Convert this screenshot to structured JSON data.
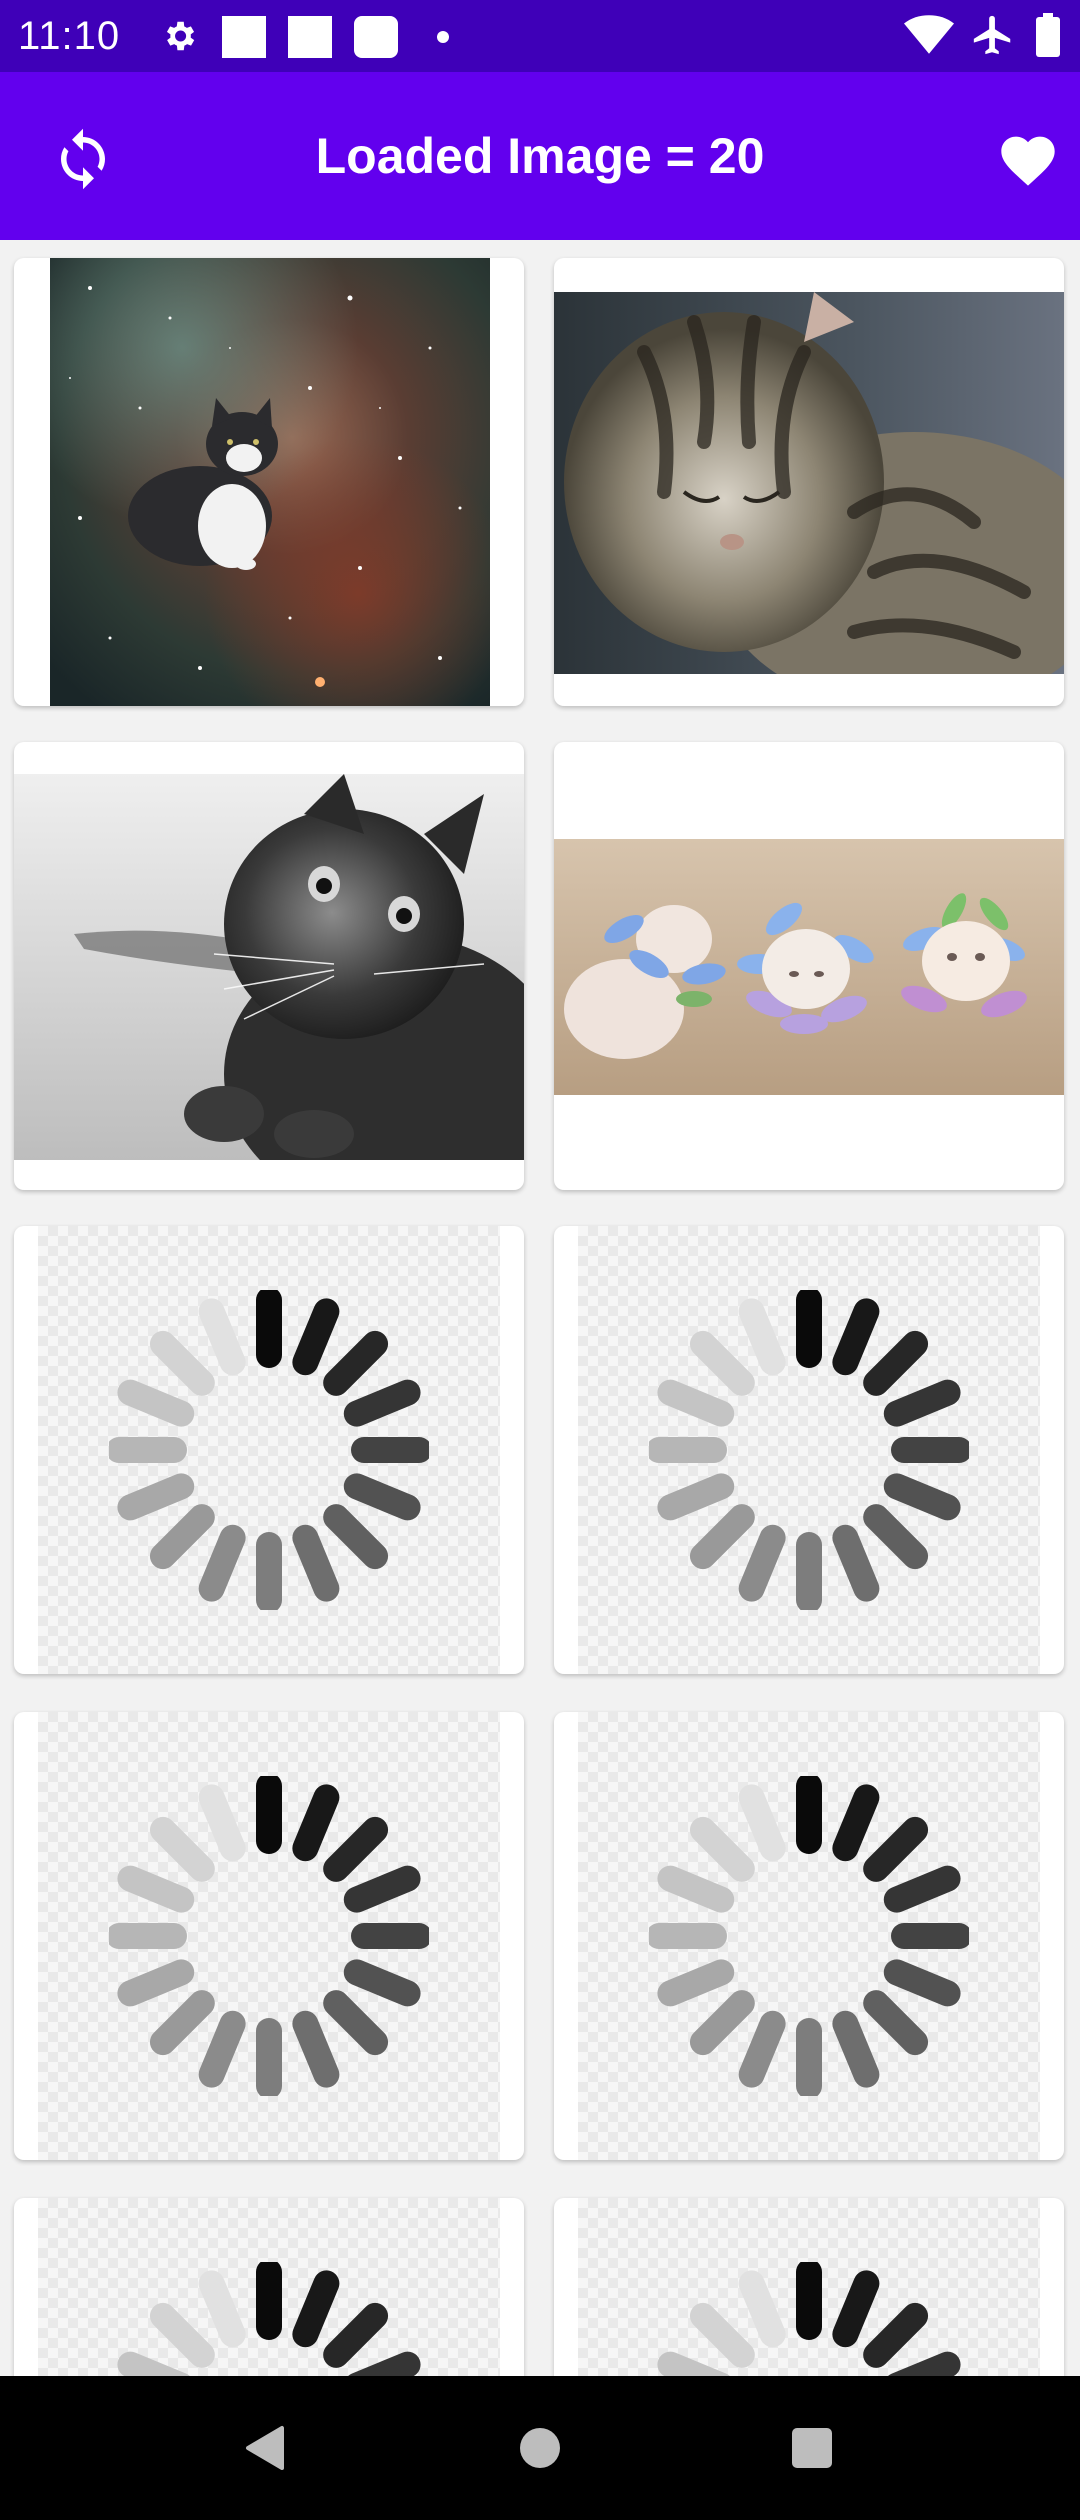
{
  "status_bar": {
    "time": "11:10",
    "icons": [
      "gear-icon",
      "notification-square-icon",
      "notification-square-icon",
      "notification-rounded-icon",
      "dot-icon",
      "wifi-icon",
      "airplane-icon",
      "battery-icon"
    ]
  },
  "app_bar": {
    "title": "Loaded Image = 20",
    "left_icon": "refresh-icon",
    "right_icon": "heart-icon",
    "background": "#6200ee",
    "status_background": "#3f00b8"
  },
  "grid": {
    "columns": 2,
    "cards": [
      {
        "type": "image",
        "depicts": "cat-in-space"
      },
      {
        "type": "image",
        "depicts": "tabby-kitten-sleeping"
      },
      {
        "type": "image",
        "depicts": "black-white-kitten"
      },
      {
        "type": "image",
        "depicts": "three-kittens-with-flowers"
      },
      {
        "type": "loading"
      },
      {
        "type": "loading"
      },
      {
        "type": "loading"
      },
      {
        "type": "loading"
      },
      {
        "type": "loading"
      },
      {
        "type": "loading"
      }
    ]
  },
  "nav_bar": {
    "icons": [
      "back-icon",
      "home-icon",
      "recents-icon"
    ]
  }
}
